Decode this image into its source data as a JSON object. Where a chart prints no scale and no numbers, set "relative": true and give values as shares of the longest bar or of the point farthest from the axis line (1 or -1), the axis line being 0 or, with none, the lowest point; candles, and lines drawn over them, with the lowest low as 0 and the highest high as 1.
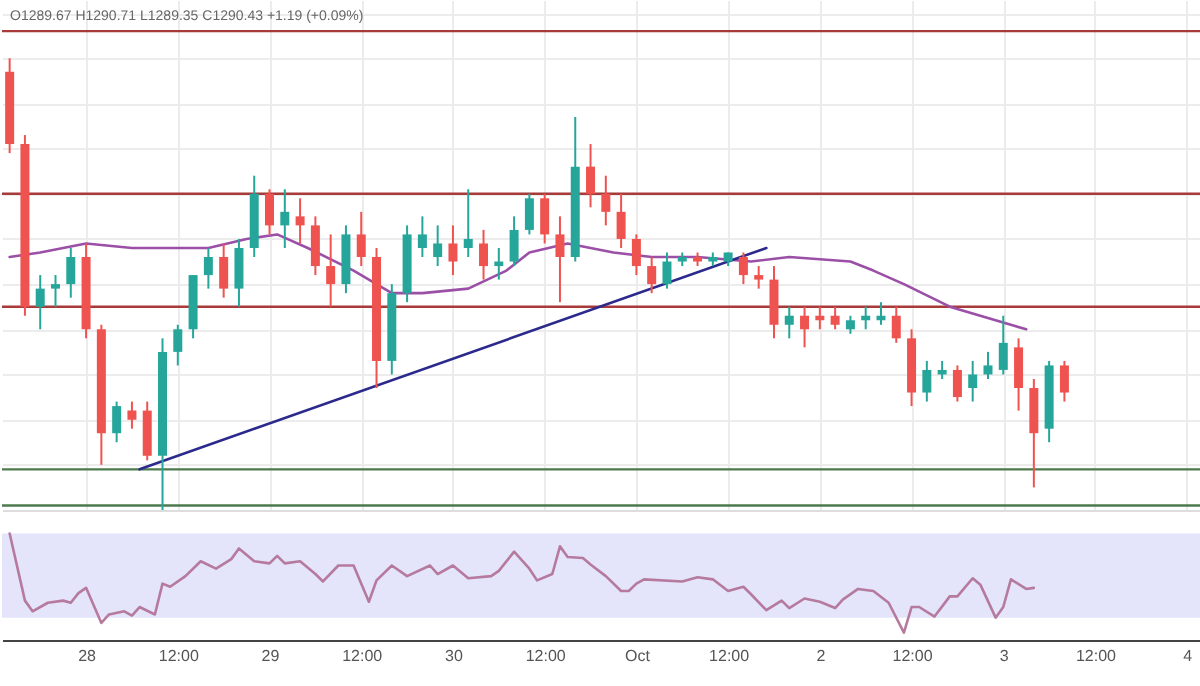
{
  "chart_data": [
    {
      "type": "candlestick",
      "relative": true,
      "grid": true,
      "tick_labels": false,
      "colors": [
        "#ef5350",
        "#ef5350",
        "#26a69a",
        "#26a69a",
        "#26a69a",
        "#ef5350",
        "#ef5350",
        "#26a69a",
        "#ef5350",
        "#ef5350",
        "#26a69a",
        "#26a69a",
        "#26a69a",
        "#26a69a",
        "#ef5350",
        "#26a69a",
        "#26a69a",
        "#ef5350",
        "#26a69a",
        "#ef5350",
        "#ef5350",
        "#ef5350",
        "#26a69a",
        "#ef5350",
        "#ef5350",
        "#26a69a",
        "#26a69a",
        "#26a69a",
        "#26a69a",
        "#ef5350",
        "#26a69a",
        "#ef5350",
        "#26a69a",
        "#26a69a",
        "#26a69a",
        "#ef5350",
        "#ef5350",
        "#26a69a",
        "#ef5350",
        "#ef5350",
        "#ef5350",
        "#ef5350",
        "#ef5350",
        "#26a69a",
        "#26a69a",
        "#ef5350",
        "#26a69a",
        "#26a69a",
        "#ef5350",
        "#ef5350",
        "#ef5350",
        "#26a69a",
        "#ef5350",
        "#ef5350",
        "#ef5350",
        "#26a69a",
        "#26a69a",
        "#26a69a",
        "#ef5350",
        "#ef5350",
        "#26a69a",
        "#26a69a",
        "#ef5350",
        "#26a69a",
        "#26a69a",
        "#26a69a",
        "#ef5350",
        "#ef5350",
        "#26a69a",
        "#ef5350"
      ],
      "annotations": [
        "O1289.67 H1290.71 L1289.35 C1290.43 +1.19 (+0.09%)"
      ],
      "xlim": [
        "--09-27T13:00",
        "--10-04T02:00"
      ],
      "xticks": [
        {
          "value": "--09-28",
          "label": null
        },
        {
          "value": "--09-28T12:00",
          "label": null
        },
        {
          "value": "--09-29",
          "label": null
        },
        {
          "value": "--09-29T12:00",
          "label": null
        },
        {
          "value": "--09-30",
          "label": null
        },
        {
          "value": "--09-30T12:00",
          "label": null
        },
        {
          "value": "--10-01",
          "label": null
        },
        {
          "value": "--10-01T12:00",
          "label": null
        },
        {
          "value": "--10-02",
          "label": null
        },
        {
          "value": "--10-02T12:00",
          "label": null
        },
        {
          "value": "--10-03",
          "label": null
        },
        {
          "value": "--10-03T12:00",
          "label": null
        },
        {
          "value": "--10-04",
          "label": null
        }
      ],
      "x": [
        "--09-27T14:00",
        "--09-27T16:00",
        "--09-27T18:00",
        "--09-27T20:00",
        "--09-27T22:00",
        "--09-28T00:00",
        "--09-28T02:00",
        "--09-28T04:00",
        "--09-28T06:00",
        "--09-28T08:00",
        "--09-28T10:00",
        "--09-28T12:00",
        "--09-28T14:00",
        "--09-28T16:00",
        "--09-28T18:00",
        "--09-28T20:00",
        "--09-28T22:00",
        "--09-29T00:00",
        "--09-29T02:00",
        "--09-29T04:00",
        "--09-29T06:00",
        "--09-29T08:00",
        "--09-29T10:00",
        "--09-29T12:00",
        "--09-29T14:00",
        "--09-29T16:00",
        "--09-29T18:00",
        "--09-29T20:00",
        "--09-29T22:00",
        "--09-30T00:00",
        "--09-30T02:00",
        "--09-30T04:00",
        "--09-30T06:00",
        "--09-30T08:00",
        "--09-30T10:00",
        "--09-30T12:00",
        "--09-30T14:00",
        "--09-30T16:00",
        "--09-30T18:00",
        "--09-30T20:00",
        "--09-30T22:00",
        "--10-01T00:00",
        "--10-01T02:00",
        "--10-01T04:00",
        "--10-01T06:00",
        "--10-01T08:00",
        "--10-01T10:00",
        "--10-01T12:00",
        "--10-01T14:00",
        "--10-01T16:00",
        "--10-01T18:00",
        "--10-01T20:00",
        "--10-01T22:00",
        "--10-02T00:00",
        "--10-02T02:00",
        "--10-02T04:00",
        "--10-02T06:00",
        "--10-02T08:00",
        "--10-02T10:00",
        "--10-02T12:00",
        "--10-02T14:00",
        "--10-02T16:00",
        "--10-02T18:00",
        "--10-02T20:00",
        "--10-02T22:00",
        "--10-03T00:00",
        "--10-03T02:00",
        "--10-03T04:00",
        "--10-03T06:00",
        "--10-03T08:00"
      ],
      "ohlc": [
        [
          0.97,
          1.0,
          0.79,
          0.81
        ],
        [
          0.81,
          0.83,
          0.43,
          0.45
        ],
        [
          0.45,
          0.52,
          0.4,
          0.49
        ],
        [
          0.49,
          0.52,
          0.45,
          0.5
        ],
        [
          0.5,
          0.58,
          0.47,
          0.56
        ],
        [
          0.56,
          0.59,
          0.38,
          0.4
        ],
        [
          0.4,
          0.41,
          0.1,
          0.17
        ],
        [
          0.17,
          0.24,
          0.15,
          0.23
        ],
        [
          0.22,
          0.24,
          0.18,
          0.2
        ],
        [
          0.22,
          0.24,
          0.11,
          0.12
        ],
        [
          0.12,
          0.38,
          0,
          0.35
        ],
        [
          0.35,
          0.41,
          0.32,
          0.4
        ],
        [
          0.4,
          0.52,
          0.38,
          0.52
        ],
        [
          0.52,
          0.58,
          0.49,
          0.56
        ],
        [
          0.56,
          0.59,
          0.47,
          0.49
        ],
        [
          0.49,
          0.6,
          0.45,
          0.58
        ],
        [
          0.58,
          0.74,
          0.56,
          0.7
        ],
        [
          0.7,
          0.71,
          0.61,
          0.63
        ],
        [
          0.63,
          0.71,
          0.58,
          0.66
        ],
        [
          0.65,
          0.69,
          0.59,
          0.63
        ],
        [
          0.63,
          0.65,
          0.52,
          0.54
        ],
        [
          0.54,
          0.61,
          0.45,
          0.5
        ],
        [
          0.5,
          0.63,
          0.48,
          0.61
        ],
        [
          0.61,
          0.66,
          0.54,
          0.56
        ],
        [
          0.56,
          0.58,
          0.27,
          0.33
        ],
        [
          0.33,
          0.5,
          0.3,
          0.48
        ],
        [
          0.48,
          0.63,
          0.46,
          0.61
        ],
        [
          0.58,
          0.65,
          0.56,
          0.61
        ],
        [
          0.56,
          0.63,
          0.54,
          0.59
        ],
        [
          0.59,
          0.63,
          0.52,
          0.55
        ],
        [
          0.58,
          0.71,
          0.56,
          0.6
        ],
        [
          0.59,
          0.62,
          0.51,
          0.54
        ],
        [
          0.54,
          0.58,
          0.51,
          0.55
        ],
        [
          0.55,
          0.65,
          0.54,
          0.62
        ],
        [
          0.62,
          0.7,
          0.61,
          0.69
        ],
        [
          0.69,
          0.7,
          0.59,
          0.61
        ],
        [
          0.61,
          0.65,
          0.46,
          0.56
        ],
        [
          0.56,
          0.87,
          0.55,
          0.76
        ],
        [
          0.76,
          0.81,
          0.67,
          0.7
        ],
        [
          0.7,
          0.74,
          0.63,
          0.66
        ],
        [
          0.66,
          0.7,
          0.58,
          0.6
        ],
        [
          0.6,
          0.61,
          0.52,
          0.54
        ],
        [
          0.54,
          0.56,
          0.48,
          0.5
        ],
        [
          0.5,
          0.57,
          0.49,
          0.55
        ],
        [
          0.55,
          0.57,
          0.54,
          0.56
        ],
        [
          0.56,
          0.57,
          0.54,
          0.55
        ],
        [
          0.55,
          0.57,
          0.54,
          0.56
        ],
        [
          0.55,
          0.57,
          0.54,
          0.57
        ],
        [
          0.56,
          0.57,
          0.5,
          0.52
        ],
        [
          0.52,
          0.54,
          0.49,
          0.51
        ],
        [
          0.51,
          0.54,
          0.38,
          0.41
        ],
        [
          0.41,
          0.45,
          0.38,
          0.43
        ],
        [
          0.43,
          0.45,
          0.36,
          0.4
        ],
        [
          0.43,
          0.45,
          0.4,
          0.42
        ],
        [
          0.43,
          0.45,
          0.4,
          0.41
        ],
        [
          0.4,
          0.43,
          0.39,
          0.42
        ],
        [
          0.42,
          0.45,
          0.4,
          0.43
        ],
        [
          0.42,
          0.46,
          0.41,
          0.43
        ],
        [
          0.43,
          0.45,
          0.37,
          0.38
        ],
        [
          0.38,
          0.4,
          0.23,
          0.26
        ],
        [
          0.26,
          0.33,
          0.24,
          0.31
        ],
        [
          0.3,
          0.33,
          0.29,
          0.31
        ],
        [
          0.31,
          0.32,
          0.24,
          0.25
        ],
        [
          0.27,
          0.33,
          0.24,
          0.3
        ],
        [
          0.3,
          0.35,
          0.29,
          0.32
        ],
        [
          0.31,
          0.43,
          0.3,
          0.37
        ],
        [
          0.36,
          0.38,
          0.22,
          0.27
        ],
        [
          0.27,
          0.29,
          0.05,
          0.17
        ],
        [
          0.18,
          0.33,
          0.15,
          0.32
        ],
        [
          0.32,
          0.33,
          0.24,
          0.26
        ]
      ],
      "series": [
        {
          "type": "line",
          "color": "#9b4fa6",
          "x": [
            "--09-27T14:00",
            "--09-27T18:00",
            "--09-28T00:00",
            "--09-28T06:00",
            "--09-28T11:00",
            "--09-28T16:00",
            "--09-28T21:00",
            "--09-29T01:00",
            "--09-29T05:00",
            "--09-29T11:00",
            "--09-29T16:00",
            "--09-29T20:00",
            "--09-30T02:00",
            "--09-30T07:00",
            "--09-30T10:00",
            "--09-30T15:00",
            "--09-30T21:00",
            "--10-01T02:00",
            "--10-01T08:00",
            "--10-01T15:00",
            "--10-01T20:00",
            "--10-02T04:00",
            "--10-02T07:00",
            "--10-02T11:00",
            "--10-02T17:00",
            "--10-03T03:00"
          ],
          "values": [
            0.56,
            0.57,
            0.59,
            0.58,
            0.58,
            0.58,
            0.6,
            0.61,
            0.58,
            0.53,
            0.48,
            0.48,
            0.49,
            0.53,
            0.57,
            0.59,
            0.57,
            0.56,
            0.56,
            0.55,
            0.56,
            0.55,
            0.53,
            0.5,
            0.45,
            0.4
          ]
        },
        {
          "type": "line",
          "color": "#2b2a8c",
          "x": [
            "--09-28T07:00",
            "--10-01T17:00"
          ],
          "values": [
            0.09,
            0.58
          ]
        }
      ],
      "ref_lines": [
        {
          "axis": "y",
          "value": 1.06,
          "color": "#a83a3a"
        },
        {
          "axis": "y",
          "value": 0.7,
          "color": "#a83a3a"
        },
        {
          "axis": "y",
          "value": 0.45,
          "color": "#a83a3a"
        },
        {
          "axis": "y",
          "value": 0.09,
          "color": "#4d7a4d"
        },
        {
          "axis": "y",
          "value": 0.01,
          "color": "#4d7a4d"
        }
      ]
    },
    {
      "type": "line",
      "relative": true,
      "xlim": [
        "--09-27T13:00",
        "--10-04T02:00"
      ],
      "xticks": [
        {
          "value": "--09-28",
          "label": "28"
        },
        {
          "value": "--09-28T12:00",
          "label": "12:00"
        },
        {
          "value": "--09-29",
          "label": "29"
        },
        {
          "value": "--09-29T12:00",
          "label": "12:00"
        },
        {
          "value": "--09-30",
          "label": "30"
        },
        {
          "value": "--09-30T12:00",
          "label": "12:00"
        },
        {
          "value": "--10-01",
          "label": "Oct"
        },
        {
          "value": "--10-01T12:00",
          "label": "12:00"
        },
        {
          "value": "--10-02",
          "label": "2"
        },
        {
          "value": "--10-02T12:00",
          "label": "12:00"
        },
        {
          "value": "--10-03",
          "label": "3"
        },
        {
          "value": "--10-03T12:00",
          "label": "12:00"
        },
        {
          "value": "--10-04",
          "label": "4"
        }
      ],
      "bands": [
        {
          "axis": "y",
          "from": 0.21,
          "to": 1.0,
          "color": "#e4e4fb"
        }
      ],
      "series": [
        {
          "color": "#b57a9e",
          "x": [
            "--09-27T14:00",
            "--09-27T16:00",
            "--09-27T17:00",
            "--09-27T19:00",
            "--09-27T21:00",
            "--09-27T22:00",
            "--09-27T23:00",
            "--09-28T00:00",
            "--09-28T02:00",
            "--09-28T03:00",
            "--09-28T05:00",
            "--09-28T06:00",
            "--09-28T07:00",
            "--09-28T09:00",
            "--09-28T10:00",
            "--09-28T11:00",
            "--09-28T13:00",
            "--09-28T15:00",
            "--09-28T17:00",
            "--09-28T19:00",
            "--09-28T20:00",
            "--09-28T22:00",
            "--09-29T00:00",
            "--09-29T01:00",
            "--09-29T02:00",
            "--09-29T04:00",
            "--09-29T06:00",
            "--09-29T07:00",
            "--09-29T09:00",
            "--09-29T11:00",
            "--09-29T13:00",
            "--09-29T14:00",
            "--09-29T16:00",
            "--09-29T18:00",
            "--09-29T21:00",
            "--09-29T22:00",
            "--09-30T00:00",
            "--09-30T02:00",
            "--09-30T05:00",
            "--09-30T06:00",
            "--09-30T08:00",
            "--09-30T10:00",
            "--09-30T11:00",
            "--09-30T13:00",
            "--09-30T14:00",
            "--09-30T15:00",
            "--09-30T17:00",
            "--09-30T18:00",
            "--09-30T20:00",
            "--09-30T22:00",
            "--09-30T23:00",
            "--10-01T00:00",
            "--10-01T01:00",
            "--10-01T06:00",
            "--10-01T08:00",
            "--10-01T10:00",
            "--10-01T12:00",
            "--10-01T14:00",
            "--10-01T15:00",
            "--10-01T17:00",
            "--10-01T19:00",
            "--10-01T20:00",
            "--10-01T22:00",
            "--10-02T00:00",
            "--10-02T02:00",
            "--10-02T03:00",
            "--10-02T05:00",
            "--10-02T07:00",
            "--10-02T09:00",
            "--10-02T11:00",
            "--10-02T12:00",
            "--10-02T13:00",
            "--10-02T15:00",
            "--10-02T17:00",
            "--10-02T18:00",
            "--10-02T20:00",
            "--10-02T21:00",
            "--10-02T23:00",
            "--10-03T00:00",
            "--10-03T01:00",
            "--10-03T03:00",
            "--10-03T04:00"
          ],
          "values": [
            1.0,
            0.37,
            0.27,
            0.35,
            0.37,
            0.35,
            0.44,
            0.49,
            0.16,
            0.24,
            0.27,
            0.23,
            0.31,
            0.24,
            0.53,
            0.5,
            0.6,
            0.74,
            0.67,
            0.76,
            0.86,
            0.74,
            0.72,
            0.79,
            0.72,
            0.74,
            0.62,
            0.55,
            0.7,
            0.7,
            0.36,
            0.56,
            0.7,
            0.6,
            0.7,
            0.62,
            0.7,
            0.58,
            0.6,
            0.65,
            0.83,
            0.67,
            0.56,
            0.62,
            0.88,
            0.78,
            0.77,
            0.71,
            0.6,
            0.46,
            0.46,
            0.53,
            0.57,
            0.55,
            0.59,
            0.57,
            0.46,
            0.5,
            0.43,
            0.28,
            0.37,
            0.3,
            0.39,
            0.36,
            0.3,
            0.38,
            0.48,
            0.46,
            0.35,
            0.07,
            0.31,
            0.31,
            0.22,
            0.41,
            0.41,
            0.58,
            0.52,
            0.21,
            0.31,
            0.57,
            0.48,
            0.49
          ]
        }
      ]
    }
  ]
}
